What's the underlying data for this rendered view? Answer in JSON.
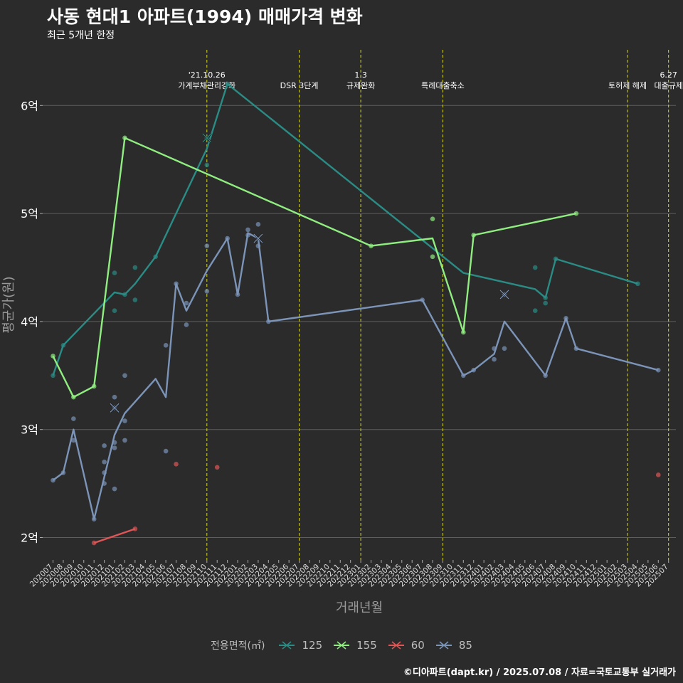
{
  "title": "사동 현대1 아파트(1994) 매매가격 변화",
  "subtitle": "최근 5개년 한정",
  "caption": "©디아파트(dapt.kr) / 2025.07.08 / 자료=국토교통부 실거래가",
  "chart_data": {
    "type": "line",
    "xlabel": "거래년월",
    "ylabel": "평균가(원)",
    "ylim": [
      1.75,
      6.5
    ],
    "yticks": [
      2,
      3,
      4,
      5,
      6
    ],
    "ytick_labels": [
      "2억",
      "3억",
      "4억",
      "5억",
      "6억"
    ],
    "x_categories": [
      "202007",
      "202008",
      "202009",
      "202010",
      "202011",
      "202012",
      "202101",
      "202102",
      "202103",
      "202104",
      "202105",
      "202106",
      "202107",
      "202108",
      "202109",
      "202110",
      "202111",
      "202112",
      "202201",
      "202202",
      "202203",
      "202204",
      "202205",
      "202206",
      "202207",
      "202208",
      "202209",
      "202210",
      "202211",
      "202212",
      "202301",
      "202302",
      "202303",
      "202304",
      "202305",
      "202306",
      "202307",
      "202308",
      "202309",
      "202310",
      "202311",
      "202312",
      "202401",
      "202402",
      "202403",
      "202404",
      "202405",
      "202406",
      "202407",
      "202408",
      "202409",
      "202410",
      "202411",
      "202412",
      "202501",
      "202502",
      "202503",
      "202504",
      "202505",
      "202506",
      "202507"
    ],
    "legend_title": "전용면적(㎡)",
    "grid": true,
    "events": [
      {
        "month": "202110",
        "label": "'21.10.26\n가계부채관리강화"
      },
      {
        "month": "202207",
        "label": "DSR 3단계"
      },
      {
        "month": "202301",
        "label": "1.3\n규제완화"
      },
      {
        "month": "202309",
        "label": "특례대출축소"
      },
      {
        "month": "202503",
        "label": "토허제 해제"
      },
      {
        "month": "202507",
        "label": "6.27\n대출규제"
      }
    ],
    "series": [
      {
        "name": "125",
        "color": "#2a8c85",
        "line": [
          [
            "202007",
            3.5
          ],
          [
            "202008",
            3.78
          ],
          [
            "202101",
            4.27
          ],
          [
            "202102",
            4.25
          ],
          [
            "202103",
            4.35
          ],
          [
            "202105",
            4.6
          ],
          [
            "202110",
            5.6
          ],
          [
            "202112",
            6.2
          ],
          [
            "202311",
            4.45
          ],
          [
            "202406",
            4.3
          ],
          [
            "202407",
            4.22
          ],
          [
            "202408",
            4.58
          ],
          [
            "202504",
            4.35
          ]
        ],
        "points": [
          [
            "202007",
            3.5
          ],
          [
            "202008",
            3.78
          ],
          [
            "202101",
            4.45
          ],
          [
            "202101",
            4.1
          ],
          [
            "202102",
            4.25
          ],
          [
            "202103",
            4.5
          ],
          [
            "202103",
            4.2
          ],
          [
            "202105",
            4.6
          ],
          [
            "202110",
            5.45
          ],
          [
            "202110",
            5.7
          ],
          [
            "202112",
            6.2
          ],
          [
            "202406",
            4.5
          ],
          [
            "202406",
            4.1
          ],
          [
            "202407",
            4.17
          ],
          [
            "202407",
            4.22
          ],
          [
            "202408",
            4.58
          ],
          [
            "202504",
            4.35
          ]
        ],
        "crosses": [
          [
            "202110",
            5.7
          ]
        ]
      },
      {
        "name": "155",
        "color": "#90ee80",
        "line": [
          [
            "202007",
            3.68
          ],
          [
            "202009",
            3.3
          ],
          [
            "202011",
            3.4
          ],
          [
            "202102",
            5.7
          ],
          [
            "202302",
            4.7
          ],
          [
            "202308",
            4.77
          ],
          [
            "202311",
            3.9
          ],
          [
            "202312",
            4.8
          ],
          [
            "202410",
            5.0
          ]
        ],
        "points": [
          [
            "202007",
            3.68
          ],
          [
            "202009",
            3.3
          ],
          [
            "202011",
            3.4
          ],
          [
            "202102",
            5.7
          ],
          [
            "202302",
            4.7
          ],
          [
            "202308",
            4.95
          ],
          [
            "202308",
            4.6
          ],
          [
            "202311",
            3.9
          ],
          [
            "202312",
            4.8
          ],
          [
            "202410",
            5.0
          ]
        ],
        "crosses": []
      },
      {
        "name": "60",
        "color": "#e05555",
        "line": [
          [
            "202011",
            1.95
          ],
          [
            "202103",
            2.08
          ]
        ],
        "points": [
          [
            "202011",
            1.95
          ],
          [
            "202103",
            2.08
          ],
          [
            "202107",
            2.68
          ],
          [
            "202111",
            2.65
          ],
          [
            "202506",
            2.58
          ]
        ],
        "crosses": []
      },
      {
        "name": "85",
        "color": "#7b94b8",
        "line": [
          [
            "202007",
            2.53
          ],
          [
            "202008",
            2.6
          ],
          [
            "202009",
            3.0
          ],
          [
            "202011",
            2.17
          ],
          [
            "202101",
            2.95
          ],
          [
            "202102",
            3.15
          ],
          [
            "202105",
            3.47
          ],
          [
            "202106",
            3.3
          ],
          [
            "202107",
            4.35
          ],
          [
            "202108",
            4.1
          ],
          [
            "202110",
            4.47
          ],
          [
            "202112",
            4.77
          ],
          [
            "202201",
            4.25
          ],
          [
            "202202",
            4.82
          ],
          [
            "202203",
            4.77
          ],
          [
            "202204",
            4.0
          ],
          [
            "202307",
            4.2
          ],
          [
            "202311",
            3.5
          ],
          [
            "202312",
            3.55
          ],
          [
            "202402",
            3.7
          ],
          [
            "202403",
            4.0
          ],
          [
            "202407",
            3.5
          ],
          [
            "202409",
            4.03
          ],
          [
            "202410",
            3.75
          ],
          [
            "202506",
            3.55
          ]
        ],
        "points": [
          [
            "202007",
            2.53
          ],
          [
            "202008",
            2.6
          ],
          [
            "202009",
            3.1
          ],
          [
            "202009",
            2.9
          ],
          [
            "202011",
            2.17
          ],
          [
            "202012",
            2.85
          ],
          [
            "202012",
            2.7
          ],
          [
            "202012",
            2.6
          ],
          [
            "202012",
            2.5
          ],
          [
            "202101",
            3.3
          ],
          [
            "202101",
            3.2
          ],
          [
            "202101",
            2.88
          ],
          [
            "202101",
            2.83
          ],
          [
            "202101",
            2.45
          ],
          [
            "202102",
            3.5
          ],
          [
            "202102",
            3.08
          ],
          [
            "202102",
            2.9
          ],
          [
            "202106",
            3.78
          ],
          [
            "202106",
            2.8
          ],
          [
            "202107",
            4.35
          ],
          [
            "202108",
            4.17
          ],
          [
            "202108",
            3.97
          ],
          [
            "202110",
            4.7
          ],
          [
            "202110",
            4.28
          ],
          [
            "202112",
            4.77
          ],
          [
            "202201",
            4.25
          ],
          [
            "202202",
            4.85
          ],
          [
            "202202",
            4.8
          ],
          [
            "202203",
            4.9
          ],
          [
            "202203",
            4.7
          ],
          [
            "202204",
            4.0
          ],
          [
            "202307",
            4.2
          ],
          [
            "202311",
            3.5
          ],
          [
            "202312",
            3.55
          ],
          [
            "202402",
            3.75
          ],
          [
            "202402",
            3.65
          ],
          [
            "202403",
            3.75
          ],
          [
            "202403",
            4.25
          ],
          [
            "202407",
            3.5
          ],
          [
            "202409",
            4.03
          ],
          [
            "202410",
            3.75
          ],
          [
            "202506",
            3.55
          ]
        ],
        "crosses": [
          [
            "202101",
            3.2
          ],
          [
            "202203",
            4.77
          ],
          [
            "202403",
            4.25
          ]
        ]
      }
    ]
  }
}
